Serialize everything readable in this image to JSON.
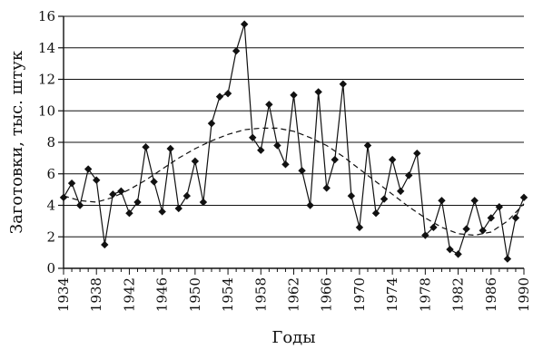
{
  "chart_data": {
    "type": "line",
    "xlabel": "Годы",
    "ylabel": "Заготовки, тыс. штук",
    "xlim": [
      1934,
      1990
    ],
    "ylim": [
      0,
      16
    ],
    "x_ticks": [
      1934,
      1938,
      1942,
      1946,
      1950,
      1954,
      1958,
      1962,
      1966,
      1970,
      1974,
      1978,
      1982,
      1986,
      1990
    ],
    "x_tick_labels": [
      "1934",
      "1938",
      "1942",
      "1946",
      "1950",
      "1954",
      "1958",
      "1962",
      "1966",
      "1970",
      "1974",
      "1978",
      "1982",
      "1986",
      "1990"
    ],
    "y_ticks": [
      0,
      2,
      4,
      6,
      8,
      10,
      12,
      14,
      16
    ],
    "y_tick_labels": [
      "0",
      "2",
      "4",
      "6",
      "8",
      "10",
      "12",
      "14",
      "16"
    ],
    "grid": {
      "horizontal": true,
      "vertical": false
    },
    "series": [
      {
        "style": "solid-diamond-markers",
        "x": [
          1934,
          1935,
          1936,
          1937,
          1938,
          1939,
          1940,
          1941,
          1942,
          1943,
          1944,
          1945,
          1946,
          1947,
          1948,
          1949,
          1950,
          1951,
          1952,
          1953,
          1954,
          1955,
          1956,
          1957,
          1958,
          1959,
          1960,
          1961,
          1962,
          1963,
          1964,
          1965,
          1966,
          1967,
          1968,
          1969,
          1970,
          1971,
          1972,
          1973,
          1974,
          1975,
          1976,
          1977,
          1978,
          1979,
          1980,
          1981,
          1982,
          1983,
          1984,
          1985,
          1986,
          1987,
          1988,
          1989,
          1990
        ],
        "y": [
          4.5,
          5.4,
          4.0,
          6.3,
          5.6,
          1.5,
          4.7,
          4.9,
          3.5,
          4.2,
          7.7,
          5.5,
          3.6,
          7.6,
          3.8,
          4.6,
          6.8,
          4.2,
          9.2,
          10.9,
          11.1,
          13.8,
          15.5,
          8.3,
          7.5,
          10.4,
          7.8,
          6.6,
          11.0,
          6.2,
          4.0,
          11.2,
          5.1,
          6.9,
          11.7,
          4.6,
          2.6,
          7.8,
          3.5,
          4.4,
          6.9,
          4.9,
          5.9,
          7.3,
          2.1,
          2.6,
          4.3,
          1.2,
          0.9,
          2.5,
          4.3,
          2.4,
          3.2,
          3.9,
          0.6,
          3.2,
          4.5
        ]
      },
      {
        "style": "dashed-trend",
        "x": [
          1934,
          1936,
          1938,
          1940,
          1942,
          1944,
          1946,
          1948,
          1950,
          1952,
          1954,
          1956,
          1958,
          1960,
          1962,
          1964,
          1966,
          1968,
          1970,
          1972,
          1974,
          1976,
          1978,
          1980,
          1982,
          1984,
          1986,
          1988,
          1990
        ],
        "y": [
          4.6,
          4.3,
          4.2,
          4.5,
          5.0,
          5.6,
          6.3,
          7.0,
          7.6,
          8.1,
          8.5,
          8.8,
          8.9,
          8.9,
          8.7,
          8.3,
          7.8,
          7.1,
          6.3,
          5.5,
          4.7,
          3.9,
          3.2,
          2.6,
          2.2,
          2.1,
          2.3,
          3.0,
          4.1
        ]
      }
    ]
  }
}
